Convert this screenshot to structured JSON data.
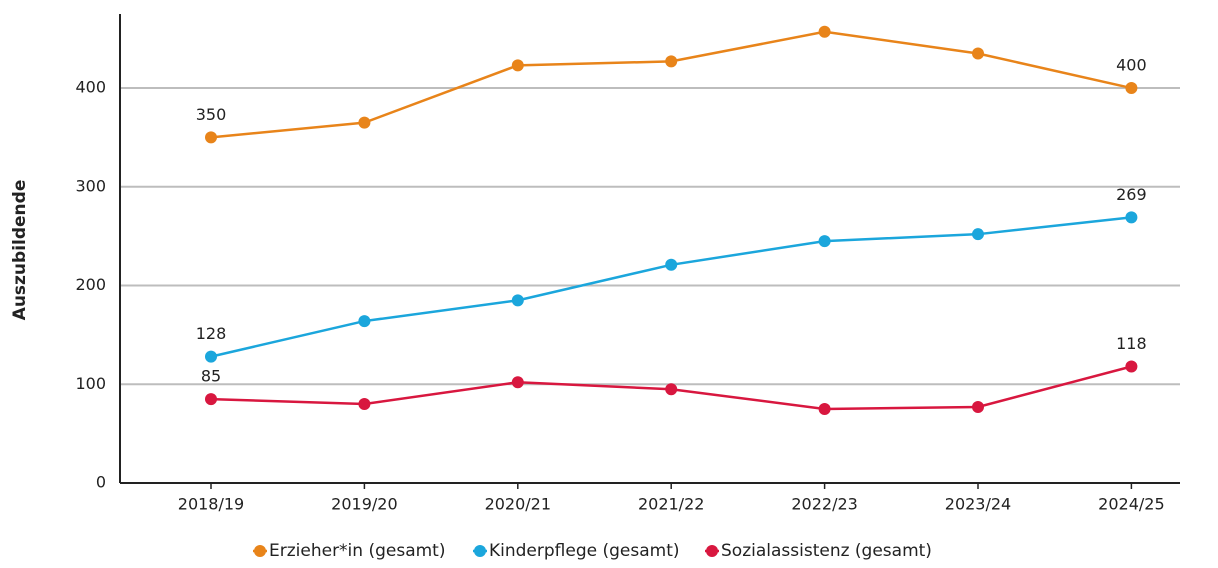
{
  "chart_data": {
    "type": "line",
    "y_label": "Auszubildende",
    "categories": [
      "2018/19",
      "2019/20",
      "2020/21",
      "2021/22",
      "2022/23",
      "2023/24",
      "2024/25"
    ],
    "series": [
      {
        "name": "Erzieher*in (gesamt)",
        "color": "#e8841a",
        "values": [
          350,
          365,
          423,
          427,
          457,
          435,
          400
        ],
        "value_labels": [
          "350",
          null,
          null,
          null,
          null,
          null,
          "400"
        ]
      },
      {
        "name": "Kinderpflege (gesamt)",
        "color": "#1ba6dc",
        "values": [
          128,
          164,
          185,
          221,
          245,
          252,
          269
        ],
        "value_labels": [
          "128",
          null,
          null,
          null,
          null,
          null,
          "269"
        ]
      },
      {
        "name": "Sozialassistenz (gesamt)",
        "color": "#d8173f",
        "values": [
          85,
          80,
          102,
          95,
          75,
          77,
          118
        ],
        "value_labels": [
          "85",
          null,
          null,
          null,
          null,
          null,
          "118"
        ]
      }
    ],
    "ylim": [
      0,
      475
    ],
    "yticks": [
      0,
      100,
      200,
      300,
      400
    ],
    "grid": true,
    "legend": "bottom"
  }
}
